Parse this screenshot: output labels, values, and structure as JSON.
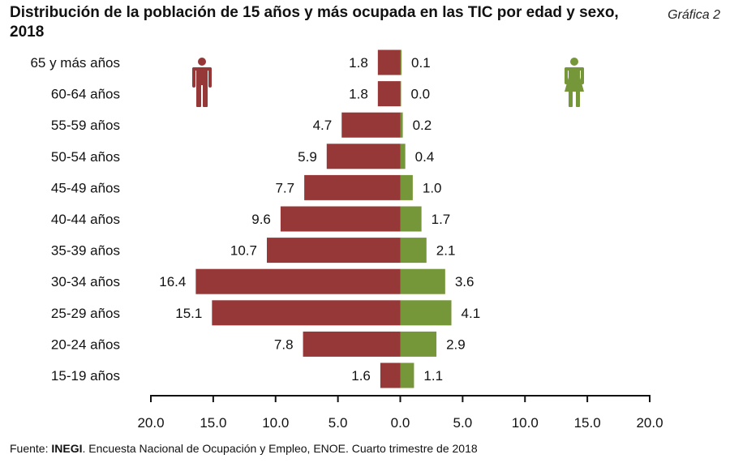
{
  "header": {
    "title": "Distribución de la población de 15 años y más ocupada en las TIC por edad y sexo, 2018",
    "chart_number": "Gráfica 2"
  },
  "footer": {
    "prefix": "Fuente: ",
    "source_bold": "INEGI",
    "rest": ". Encuesta Nacional de Ocupación y Empleo, ENOE. Cuarto trimestre de 2018"
  },
  "icons": {
    "male": "male-figure-icon",
    "female": "female-figure-icon"
  },
  "chart_data": {
    "type": "bar",
    "orientation": "horizontal-population-pyramid",
    "title": "Distribución de la población de 15 años y más ocupada en las TIC por edad y sexo, 2018",
    "categories": [
      "65 y más años",
      "60-64 años",
      "55-59 años",
      "50-54 años",
      "45-49 años",
      "40-44 años",
      "35-39 años",
      "30-34 años",
      "25-29 años",
      "20-24 años",
      "15-19 años"
    ],
    "series": [
      {
        "name": "Hombres",
        "side": "left",
        "color": "#963838",
        "values": [
          1.8,
          1.8,
          4.7,
          5.9,
          7.7,
          9.6,
          10.7,
          16.4,
          15.1,
          7.8,
          1.6
        ],
        "labels": [
          "1.8",
          "1.8",
          "4.7",
          "5.9",
          "7.7",
          "9.6",
          "10.7",
          "16.4",
          "15.1",
          "7.8",
          "1.6"
        ]
      },
      {
        "name": "Mujeres",
        "side": "right",
        "color": "#76963a",
        "values": [
          0.1,
          0.0,
          0.2,
          0.4,
          1.0,
          1.7,
          2.1,
          3.6,
          4.1,
          2.9,
          1.1
        ],
        "labels": [
          "0.1",
          "0.0",
          "0.2",
          "0.4",
          "1.0",
          "1.7",
          "2.1",
          "3.6",
          "4.1",
          "2.9",
          "1.1"
        ]
      }
    ],
    "xlim": [
      -20,
      20
    ],
    "xticks": [
      "20.0",
      "15.0",
      "10.0",
      "5.0",
      "0.0",
      "5.0",
      "10.0",
      "15.0",
      "20.0"
    ],
    "grid": false,
    "legend": "icons (male top-left, female top-right)"
  }
}
